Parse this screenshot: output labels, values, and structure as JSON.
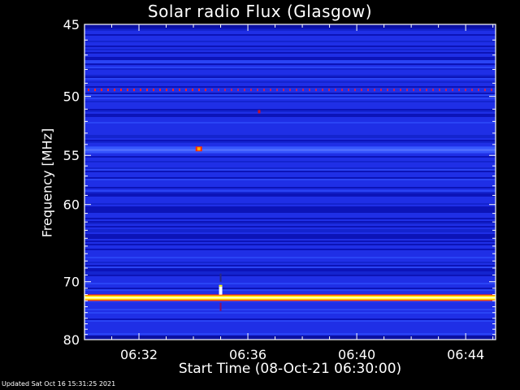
{
  "chart_data": {
    "type": "heatmap",
    "title": "Solar radio Flux (Glasgow)",
    "xlabel": "Start Time (08-Oct-21 06:30:00)",
    "ylabel": "Frequency [MHz]",
    "footer": "Updated Sat Oct 16 15:31:25 2021",
    "x_ticks": [
      {
        "minutes": 2,
        "label": "06:32"
      },
      {
        "minutes": 6,
        "label": "06:36"
      },
      {
        "minutes": 10,
        "label": "06:40"
      },
      {
        "minutes": 14,
        "label": "06:44"
      }
    ],
    "y_ticks": [
      45,
      50,
      55,
      60,
      70,
      80
    ],
    "xlim_minutes": [
      0,
      15.1
    ],
    "ylim_mhz": [
      45,
      80
    ],
    "y_scale": "reciprocal",
    "grid": false,
    "colormap": [
      "#000000",
      "#1a1aff",
      "#ff0000",
      "#ffff00",
      "#ffffff"
    ],
    "background_color": "#1f2fe6",
    "features": [
      {
        "kind": "continuous-band",
        "freq_mhz": 72.5,
        "intensity": "high"
      },
      {
        "kind": "dashed-line",
        "freq_mhz": 49.5,
        "intensity": "medium"
      },
      {
        "kind": "continuous-band",
        "freq_mhz": 54.5,
        "intensity": "elevated"
      },
      {
        "kind": "burst",
        "minutes": 4.2,
        "freq_mhz": 54.4,
        "intensity": "medium-high"
      },
      {
        "kind": "burst",
        "minutes": 5.0,
        "freq_mhz": 71.5,
        "intensity": "high"
      },
      {
        "kind": "spot",
        "minutes": 6.4,
        "freq_mhz": 51.2,
        "intensity": "medium"
      }
    ]
  }
}
